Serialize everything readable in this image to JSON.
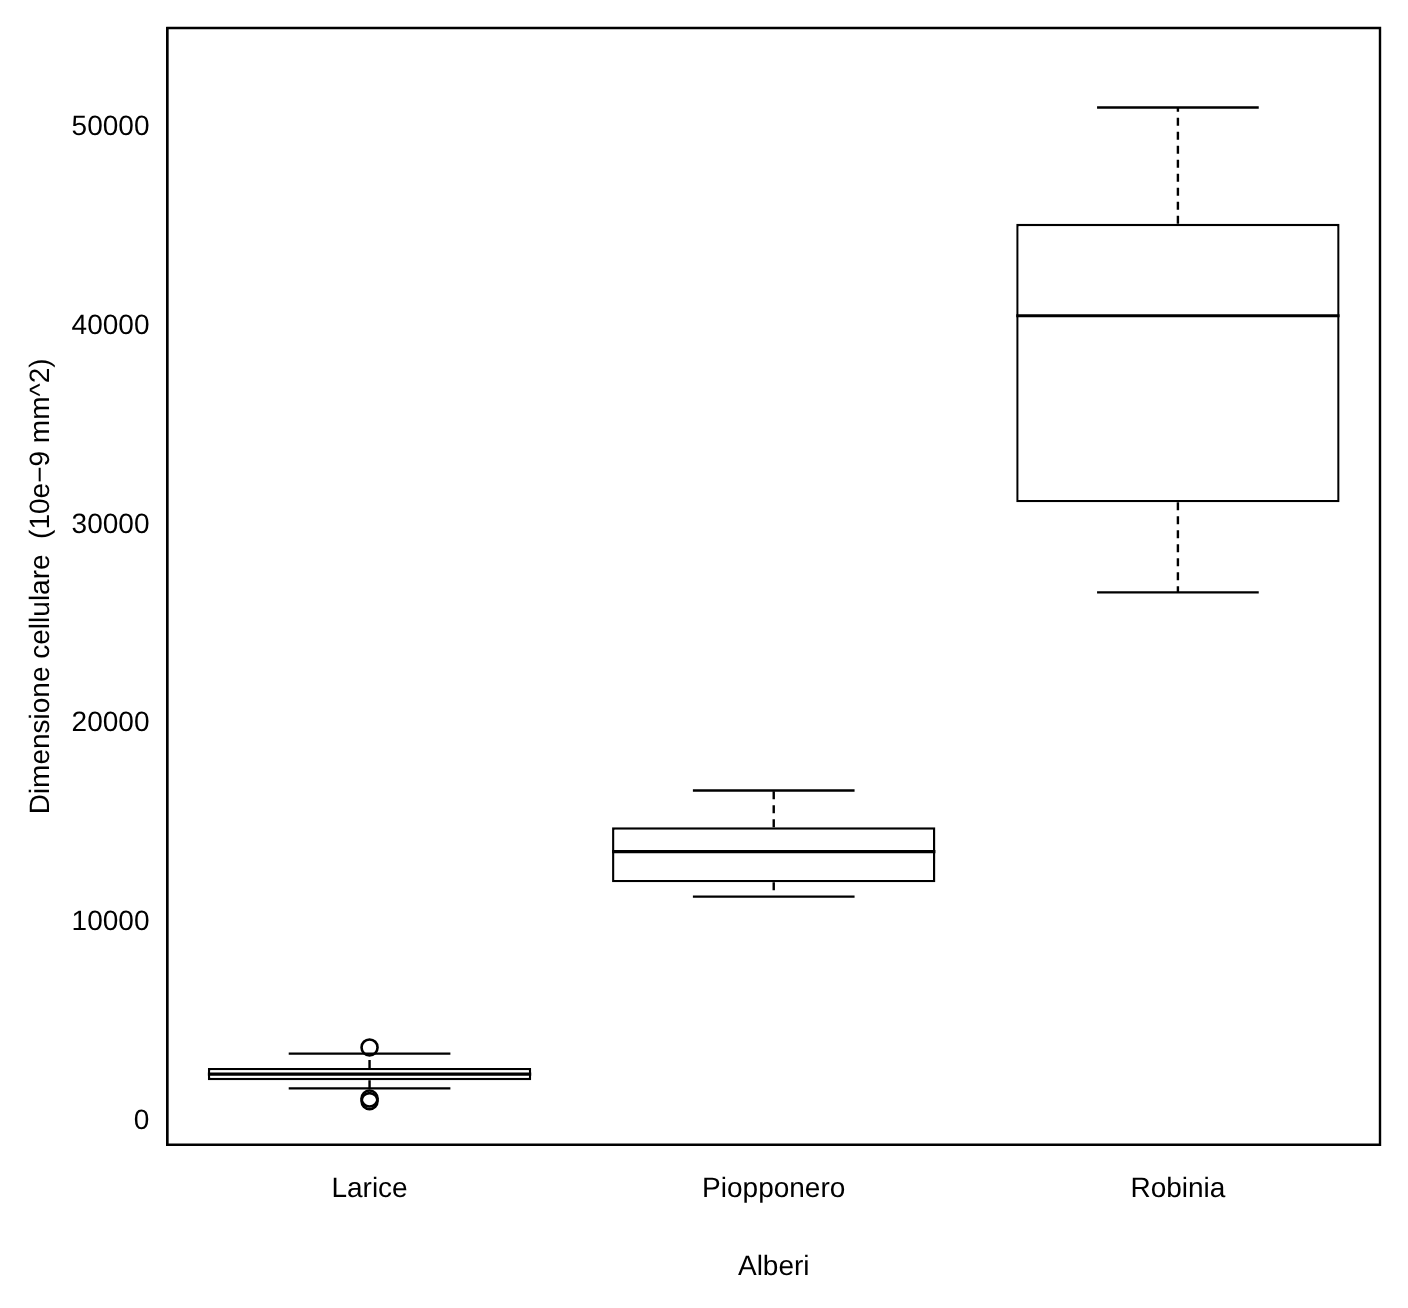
{
  "chart_data": {
    "type": "box",
    "xlabel": "Alberi",
    "ylabel": "Dimensione cellulare  (10e−9 mm^2)",
    "categories": [
      "Larice",
      "Piopponero",
      "Robinia"
    ],
    "boxes": [
      {
        "low": 1640,
        "q1": 2050,
        "median": 2360,
        "q3": 2670,
        "high": 3390,
        "outliers": [
          3700,
          1130,
          1000
        ]
      },
      {
        "low": 11290,
        "q1": 12010,
        "median": 13550,
        "q3": 14780,
        "high": 16630
      },
      {
        "low": 26600,
        "q1": 31130,
        "median": 40520,
        "q3": 45150,
        "high": 51000
      }
    ],
    "ylim": [
      -1200,
      55000
    ],
    "yticks": [
      0,
      10000,
      20000,
      30000,
      40000,
      50000
    ],
    "grid": false,
    "legend": false,
    "line_style": "dashed",
    "marker": "circle"
  }
}
